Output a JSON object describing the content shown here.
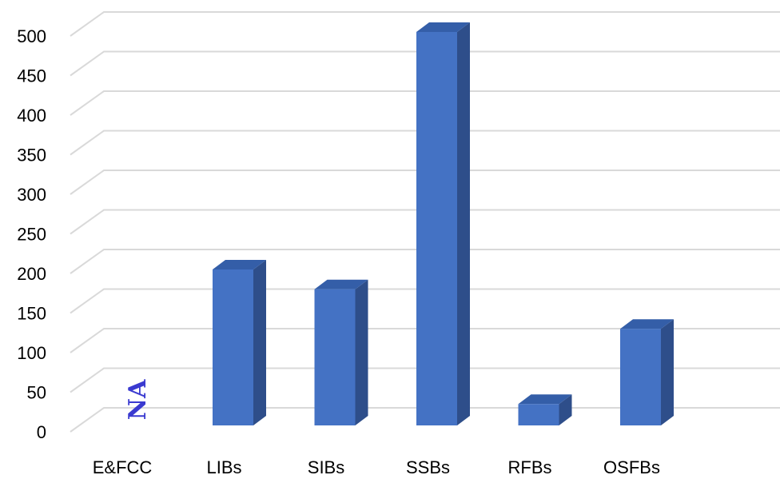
{
  "chart_data": {
    "type": "bar",
    "categories": [
      "E&FCC",
      "LIBs",
      "SIBs",
      "SSBs",
      "RFBs",
      "OSFBs"
    ],
    "values": [
      null,
      197,
      172,
      497,
      27,
      122
    ],
    "annotations": [
      {
        "category": "E&FCC",
        "text": "NA",
        "color": "#3a3ad0"
      }
    ],
    "ylim": [
      0,
      500
    ],
    "yticks": [
      0,
      50,
      100,
      150,
      200,
      250,
      300,
      350,
      400,
      450,
      500
    ],
    "grid": true,
    "bar_color": "#4472c4",
    "bar_side_color": "#2e4e8a",
    "bar_top_color": "#345ea8",
    "three_d": true
  }
}
